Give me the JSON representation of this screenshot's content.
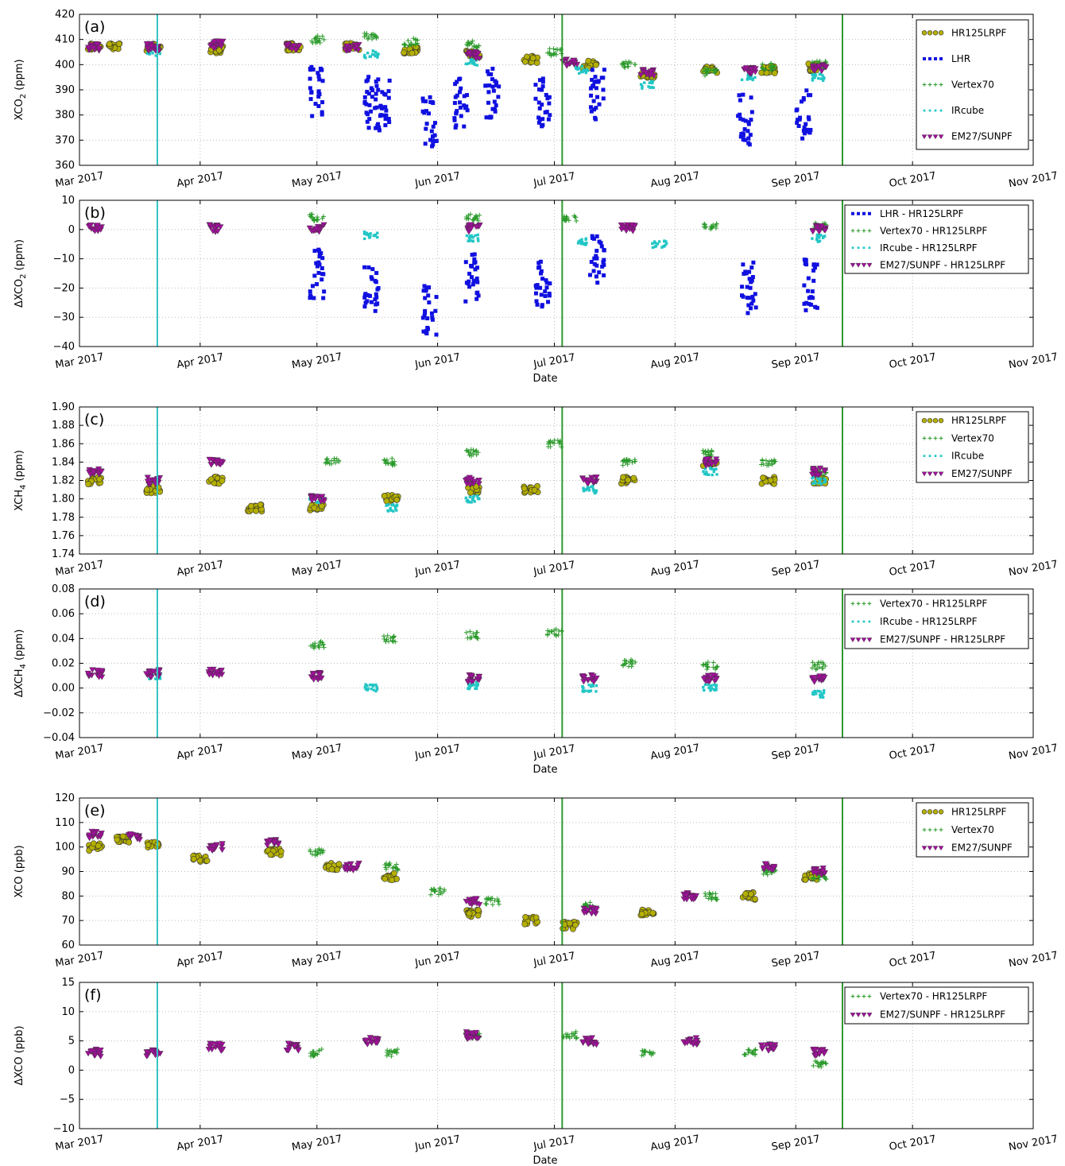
{
  "figure": {
    "colors": {
      "HR125LRPF": "#b5b000",
      "HR125LRPF_edge": "#333333",
      "LHR": "#1010e0",
      "Vertex70": "#2a9a2a",
      "IRcube": "#22c6c6",
      "EM27": "#a0109a",
      "cyan_line": "#33c4c4",
      "green_line": "#2e9a2e"
    },
    "x_ticks": [
      "Mar 2017",
      "Apr 2017",
      "May 2017",
      "Jun 2017",
      "Jul 2017",
      "Aug 2017",
      "Sep 2017",
      "Oct 2017",
      "Nov 2017"
    ],
    "x_label": "Date"
  },
  "chart_data": [
    {
      "type": "scatter",
      "panel": "(a)",
      "ylabel": "XCO2 (ppm)",
      "ylim": [
        360,
        420
      ],
      "yticks": [
        "360",
        "370",
        "380",
        "390",
        "400",
        "410",
        "420"
      ],
      "xlim": [
        "2017-03-01",
        "2017-11-01"
      ],
      "legend": [
        "HR125LRPF",
        "LHR",
        "Vertex70",
        "IRcube",
        "EM27/SUNPF"
      ],
      "legend_placement": "top-right",
      "vlines": [
        {
          "date": "2017-03-21",
          "color": "cyan"
        },
        {
          "date": "2017-07-03",
          "color": "green"
        },
        {
          "date": "2017-09-13",
          "color": "green"
        }
      ],
      "series": [
        {
          "name": "HR125LRPF",
          "x": [
            "2017-03-05",
            "2017-03-10",
            "2017-03-20",
            "2017-04-05",
            "2017-04-25",
            "2017-05-10",
            "2017-05-25",
            "2017-06-10",
            "2017-06-25",
            "2017-07-10",
            "2017-07-25",
            "2017-08-10",
            "2017-08-25",
            "2017-09-05"
          ],
          "values": [
            407,
            407,
            407,
            406,
            407,
            407,
            406,
            404,
            402,
            400,
            396,
            398,
            398,
            399
          ]
        },
        {
          "name": "LHR",
          "x": [
            "2017-05-01",
            "2017-05-15",
            "2017-05-18",
            "2017-05-30",
            "2017-06-07",
            "2017-06-15",
            "2017-06-28",
            "2017-07-12",
            "2017-08-19",
            "2017-09-03"
          ],
          "values": [
            390,
            385,
            384,
            377,
            385,
            388,
            385,
            388,
            378,
            380
          ]
        },
        {
          "name": "Vertex70",
          "x": [
            "2017-05-01",
            "2017-05-15",
            "2017-05-25",
            "2017-06-10",
            "2017-07-01",
            "2017-07-20",
            "2017-08-10",
            "2017-08-25",
            "2017-09-07"
          ],
          "values": [
            410,
            411,
            409,
            408,
            405,
            400,
            397,
            399,
            400
          ]
        },
        {
          "name": "IRcube",
          "x": [
            "2017-03-20",
            "2017-05-15",
            "2017-06-10",
            "2017-07-08",
            "2017-07-25",
            "2017-08-20",
            "2017-09-07"
          ],
          "values": [
            405,
            404,
            401,
            398,
            392,
            395,
            395
          ]
        },
        {
          "name": "EM27/SUNPF",
          "x": [
            "2017-03-05",
            "2017-03-20",
            "2017-04-05",
            "2017-04-25",
            "2017-05-10",
            "2017-06-10",
            "2017-07-05",
            "2017-07-25",
            "2017-08-20",
            "2017-09-07"
          ],
          "values": [
            407,
            407,
            408,
            407,
            407,
            404,
            401,
            397,
            398,
            399
          ]
        }
      ]
    },
    {
      "type": "scatter",
      "panel": "(b)",
      "ylabel": "ΔXCO2 (ppm)",
      "ylim": [
        -40,
        10
      ],
      "yticks": [
        "−40",
        "−30",
        "−20",
        "−10",
        "0",
        "10"
      ],
      "xlim": [
        "2017-03-01",
        "2017-11-01"
      ],
      "legend": [
        "LHR - HR125LRPF",
        "Vertex70 - HR125LRPF",
        "IRcube - HR125LRPF",
        "EM27/SUNPF - HR125LRPF"
      ],
      "legend_placement": "top-right",
      "vlines": [
        {
          "date": "2017-03-21",
          "color": "cyan"
        },
        {
          "date": "2017-07-03",
          "color": "green"
        },
        {
          "date": "2017-09-13",
          "color": "green"
        }
      ],
      "series": [
        {
          "name": "LHR - HR125LRPF",
          "x": [
            "2017-05-01",
            "2017-05-15",
            "2017-05-30",
            "2017-06-10",
            "2017-06-28",
            "2017-07-12",
            "2017-08-20",
            "2017-09-05"
          ],
          "values": [
            -15,
            -20,
            -28,
            -17,
            -18,
            -10,
            -20,
            -19
          ]
        },
        {
          "name": "Vertex70 - HR125LRPF",
          "x": [
            "2017-05-01",
            "2017-06-10",
            "2017-07-05",
            "2017-08-10",
            "2017-09-07"
          ],
          "values": [
            4,
            4,
            4,
            1,
            1
          ]
        },
        {
          "name": "IRcube - HR125LRPF",
          "x": [
            "2017-05-15",
            "2017-06-10",
            "2017-07-08",
            "2017-07-28",
            "2017-09-07"
          ],
          "values": [
            -2,
            -3,
            -4,
            -5,
            -3
          ]
        },
        {
          "name": "EM27/SUNPF - HR125LRPF",
          "x": [
            "2017-03-05",
            "2017-04-05",
            "2017-05-01",
            "2017-06-10",
            "2017-07-20",
            "2017-09-07"
          ],
          "values": [
            0.5,
            0.5,
            0.5,
            0.5,
            0.5,
            0.5
          ]
        }
      ]
    },
    {
      "type": "scatter",
      "panel": "(c)",
      "ylabel": "XCH4 (ppm)",
      "ylim": [
        1.74,
        1.9
      ],
      "yticks": [
        "1.74",
        "1.76",
        "1.78",
        "1.80",
        "1.82",
        "1.84",
        "1.86",
        "1.88",
        "1.90"
      ],
      "xlim": [
        "2017-03-01",
        "2017-11-01"
      ],
      "legend": [
        "HR125LRPF",
        "Vertex70",
        "IRcube",
        "EM27/SUNPF"
      ],
      "legend_placement": "top-right",
      "vlines": [
        {
          "date": "2017-03-21",
          "color": "cyan"
        },
        {
          "date": "2017-07-03",
          "color": "green"
        },
        {
          "date": "2017-09-13",
          "color": "green"
        }
      ],
      "series": [
        {
          "name": "HR125LRPF",
          "x": [
            "2017-03-05",
            "2017-03-20",
            "2017-04-05",
            "2017-04-15",
            "2017-05-01",
            "2017-05-20",
            "2017-06-10",
            "2017-06-25",
            "2017-07-20",
            "2017-08-10",
            "2017-08-25",
            "2017-09-07"
          ],
          "values": [
            1.82,
            1.81,
            1.82,
            1.79,
            1.79,
            1.8,
            1.81,
            1.81,
            1.82,
            1.84,
            1.82,
            1.82
          ]
        },
        {
          "name": "Vertex70",
          "x": [
            "2017-05-05",
            "2017-05-20",
            "2017-06-10",
            "2017-07-01",
            "2017-07-20",
            "2017-08-10",
            "2017-08-25",
            "2017-09-07"
          ],
          "values": [
            1.84,
            1.84,
            1.85,
            1.86,
            1.84,
            1.85,
            1.84,
            1.83
          ]
        },
        {
          "name": "IRcube",
          "x": [
            "2017-05-01",
            "2017-05-20",
            "2017-06-10",
            "2017-07-10",
            "2017-08-10",
            "2017-09-07"
          ],
          "values": [
            1.8,
            1.79,
            1.8,
            1.81,
            1.83,
            1.82
          ]
        },
        {
          "name": "EM27/SUNPF",
          "x": [
            "2017-03-05",
            "2017-03-20",
            "2017-04-05",
            "2017-05-01",
            "2017-06-10",
            "2017-07-10",
            "2017-08-10",
            "2017-09-07"
          ],
          "values": [
            1.83,
            1.82,
            1.84,
            1.8,
            1.82,
            1.82,
            1.84,
            1.83
          ]
        }
      ]
    },
    {
      "type": "scatter",
      "panel": "(d)",
      "ylabel": "ΔXCH4 (ppm)",
      "ylim": [
        -0.04,
        0.08
      ],
      "yticks": [
        "−0.04",
        "−0.02",
        "0.00",
        "0.02",
        "0.04",
        "0.06",
        "0.08"
      ],
      "xlim": [
        "2017-03-01",
        "2017-11-01"
      ],
      "legend": [
        "Vertex70 - HR125LRPF",
        "IRcube - HR125LRPF",
        "EM27/SUNPF - HR125LRPF"
      ],
      "legend_placement": "top-right",
      "vlines": [
        {
          "date": "2017-03-21",
          "color": "cyan"
        },
        {
          "date": "2017-07-03",
          "color": "green"
        },
        {
          "date": "2017-09-13",
          "color": "green"
        }
      ],
      "series": [
        {
          "name": "Vertex70 - HR125LRPF",
          "x": [
            "2017-05-01",
            "2017-05-20",
            "2017-06-10",
            "2017-07-01",
            "2017-07-20",
            "2017-08-10",
            "2017-09-07"
          ],
          "values": [
            0.035,
            0.04,
            0.043,
            0.045,
            0.02,
            0.018,
            0.018
          ]
        },
        {
          "name": "IRcube - HR125LRPF",
          "x": [
            "2017-03-20",
            "2017-05-15",
            "2017-06-10",
            "2017-07-10",
            "2017-08-10",
            "2017-09-07"
          ],
          "values": [
            0.01,
            0.0,
            0.002,
            0.0,
            0.0,
            -0.005
          ]
        },
        {
          "name": "EM27/SUNPF - HR125LRPF",
          "x": [
            "2017-03-05",
            "2017-03-20",
            "2017-04-05",
            "2017-05-01",
            "2017-06-10",
            "2017-07-10",
            "2017-08-10",
            "2017-09-07"
          ],
          "values": [
            0.012,
            0.012,
            0.013,
            0.01,
            0.008,
            0.008,
            0.008,
            0.008
          ]
        }
      ]
    },
    {
      "type": "scatter",
      "panel": "(e)",
      "ylabel": "XCO (ppb)",
      "ylim": [
        60,
        120
      ],
      "yticks": [
        "60",
        "70",
        "80",
        "90",
        "100",
        "110",
        "120"
      ],
      "xlim": [
        "2017-03-01",
        "2017-11-01"
      ],
      "legend": [
        "HR125LRPF",
        "Vertex70",
        "EM27/SUNPF"
      ],
      "legend_placement": "top-right",
      "vlines": [
        {
          "date": "2017-03-21",
          "color": "cyan"
        },
        {
          "date": "2017-07-03",
          "color": "green"
        },
        {
          "date": "2017-09-13",
          "color": "green"
        }
      ],
      "series": [
        {
          "name": "HR125LRPF",
          "x": [
            "2017-03-05",
            "2017-03-12",
            "2017-03-20",
            "2017-04-01",
            "2017-04-20",
            "2017-05-05",
            "2017-05-20",
            "2017-06-10",
            "2017-06-25",
            "2017-07-05",
            "2017-07-25",
            "2017-08-20",
            "2017-09-05"
          ],
          "values": [
            100,
            103,
            101,
            95,
            98,
            92,
            88,
            73,
            70,
            68,
            73,
            80,
            88
          ]
        },
        {
          "name": "Vertex70",
          "x": [
            "2017-05-01",
            "2017-05-20",
            "2017-06-01",
            "2017-06-15",
            "2017-07-10",
            "2017-08-10",
            "2017-08-25",
            "2017-09-07"
          ],
          "values": [
            98,
            92,
            82,
            78,
            76,
            80,
            90,
            88
          ]
        },
        {
          "name": "EM27/SUNPF",
          "x": [
            "2017-03-05",
            "2017-03-15",
            "2017-04-05",
            "2017-04-20",
            "2017-05-10",
            "2017-06-10",
            "2017-07-10",
            "2017-08-05",
            "2017-08-25",
            "2017-09-07"
          ],
          "values": [
            105,
            104,
            100,
            102,
            92,
            78,
            74,
            80,
            92,
            90
          ]
        }
      ]
    },
    {
      "type": "scatter",
      "panel": "(f)",
      "ylabel": "ΔXCO (ppb)",
      "ylim": [
        -10,
        15
      ],
      "yticks": [
        "−10",
        "−5",
        "0",
        "5",
        "10",
        "15"
      ],
      "xlim": [
        "2017-03-01",
        "2017-11-01"
      ],
      "legend": [
        "Vertex70 - HR125LRPF",
        "EM27/SUNPF - HR125LRPF"
      ],
      "legend_placement": "top-right",
      "vlines": [
        {
          "date": "2017-03-21",
          "color": "cyan"
        },
        {
          "date": "2017-07-03",
          "color": "green"
        },
        {
          "date": "2017-09-13",
          "color": "green"
        }
      ],
      "series": [
        {
          "name": "Vertex70 - HR125LRPF",
          "x": [
            "2017-05-01",
            "2017-05-20",
            "2017-06-10",
            "2017-07-05",
            "2017-07-25",
            "2017-08-20",
            "2017-09-07"
          ],
          "values": [
            3,
            3,
            6,
            6,
            3,
            3,
            1
          ]
        },
        {
          "name": "EM27/SUNPF - HR125LRPF",
          "x": [
            "2017-03-05",
            "2017-03-20",
            "2017-04-05",
            "2017-04-25",
            "2017-05-15",
            "2017-06-10",
            "2017-07-10",
            "2017-08-05",
            "2017-08-25",
            "2017-09-07"
          ],
          "values": [
            3,
            3,
            4,
            4,
            5,
            6,
            5,
            5,
            4,
            3
          ]
        }
      ]
    }
  ]
}
